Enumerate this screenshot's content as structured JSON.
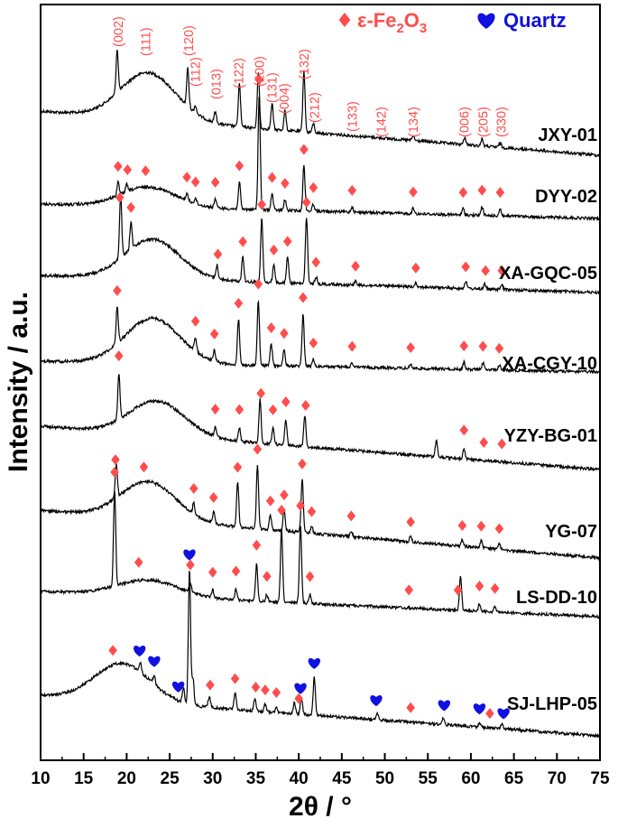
{
  "chart_data": {
    "type": "line",
    "title": "",
    "xlabel": "2θ / °",
    "ylabel": "Intensity / a.u.",
    "xlim": [
      10,
      75
    ],
    "x_ticks": [
      "10",
      "15",
      "20",
      "25",
      "30",
      "35",
      "40",
      "45",
      "50",
      "55",
      "60",
      "65",
      "70",
      "75"
    ],
    "y_ticks": [],
    "colors": {
      "fe2o3": "#ff4d4d",
      "quartz": "#1010e0",
      "trace": "#000000"
    },
    "legend": [
      {
        "name": "ε-Fe2O3",
        "marker": "diamond",
        "color": "#ff4d4d",
        "main": "ε-Fe",
        "sub": "2",
        "main2": "O",
        "sub2": "3"
      },
      {
        "name": "Quartz",
        "marker": "heart",
        "color": "#1010e0",
        "label": "Quartz"
      }
    ],
    "hkl": [
      {
        "label": "(002)",
        "x": 19.0
      },
      {
        "label": "(111)",
        "x": 22.2
      },
      {
        "label": "(120)",
        "x": 27.2
      },
      {
        "label": "(112)",
        "x": 28.0
      },
      {
        "label": "(013)",
        "x": 30.4
      },
      {
        "label": "(122)",
        "x": 33.0
      },
      {
        "label": "(200)",
        "x": 35.4
      },
      {
        "label": "(131)",
        "x": 36.9
      },
      {
        "label": "(004)",
        "x": 38.3
      },
      {
        "label": "(132)",
        "x": 40.6
      },
      {
        "label": "(212)",
        "x": 41.8
      },
      {
        "label": "(133)",
        "x": 46.2
      },
      {
        "label": "(142)",
        "x": 49.6
      },
      {
        "label": "(134)",
        "x": 53.3
      },
      {
        "label": "(006)",
        "x": 59.2
      },
      {
        "label": "(205)",
        "x": 61.4
      },
      {
        "label": "(330)",
        "x": 63.5
      }
    ],
    "series": [
      {
        "name": "JXY-01",
        "broad": {
          "center": 22.5,
          "height": 52,
          "width": 4.5
        },
        "peaks": [
          {
            "x": 18.9,
            "h": 48
          },
          {
            "x": 27.1,
            "h": 42
          },
          {
            "x": 28.0,
            "h": 8
          },
          {
            "x": 30.3,
            "h": 12
          },
          {
            "x": 33.1,
            "h": 48
          },
          {
            "x": 35.3,
            "h": 62
          },
          {
            "x": 36.9,
            "h": 28
          },
          {
            "x": 38.4,
            "h": 22
          },
          {
            "x": 40.6,
            "h": 68
          },
          {
            "x": 41.7,
            "h": 10
          },
          {
            "x": 53.3,
            "h": 5
          },
          {
            "x": 59.3,
            "h": 8
          },
          {
            "x": 61.3,
            "h": 8
          },
          {
            "x": 63.4,
            "h": 5
          }
        ],
        "fe2o3_markers": [],
        "quartz_markers": []
      },
      {
        "name": "DYY-02",
        "broad": {
          "center": 22.5,
          "height": 22,
          "width": 4.5
        },
        "peaks": [
          {
            "x": 19.0,
            "h": 14
          },
          {
            "x": 20.0,
            "h": 8
          },
          {
            "x": 27.0,
            "h": 8
          },
          {
            "x": 28.0,
            "h": 6
          },
          {
            "x": 30.3,
            "h": 10
          },
          {
            "x": 33.1,
            "h": 30
          },
          {
            "x": 35.4,
            "h": 126
          },
          {
            "x": 36.9,
            "h": 18
          },
          {
            "x": 38.4,
            "h": 12
          },
          {
            "x": 40.6,
            "h": 50
          },
          {
            "x": 41.7,
            "h": 8
          },
          {
            "x": 46.2,
            "h": 6
          },
          {
            "x": 53.3,
            "h": 6
          },
          {
            "x": 59.1,
            "h": 7
          },
          {
            "x": 61.3,
            "h": 10
          },
          {
            "x": 63.4,
            "h": 8
          }
        ],
        "fe2o3_markers": [
          19.0,
          20.1,
          22.2,
          27.0,
          28.0,
          30.3,
          33.1,
          35.4,
          36.9,
          38.4,
          40.6,
          41.7,
          46.2,
          53.3,
          59.1,
          61.3,
          63.4
        ],
        "quartz_markers": []
      },
      {
        "name": "XA-GQC-05",
        "broad": {
          "center": 23.0,
          "height": 44,
          "width": 4.5
        },
        "peaks": [
          {
            "x": 19.3,
            "h": 70
          },
          {
            "x": 20.5,
            "h": 30
          },
          {
            "x": 30.5,
            "h": 15
          },
          {
            "x": 33.5,
            "h": 28
          },
          {
            "x": 35.7,
            "h": 70
          },
          {
            "x": 37.1,
            "h": 20
          },
          {
            "x": 38.7,
            "h": 30
          },
          {
            "x": 40.9,
            "h": 74
          },
          {
            "x": 42.0,
            "h": 8
          },
          {
            "x": 46.6,
            "h": 5
          },
          {
            "x": 53.6,
            "h": 5
          },
          {
            "x": 59.4,
            "h": 8
          },
          {
            "x": 61.6,
            "h": 6
          },
          {
            "x": 63.6,
            "h": 5
          }
        ],
        "fe2o3_markers": [
          19.2,
          20.5,
          30.6,
          33.5,
          35.7,
          37.1,
          38.7,
          40.9,
          42.0,
          46.6,
          53.6,
          59.4,
          61.7,
          63.6
        ],
        "quartz_markers": []
      },
      {
        "name": "XA-CGY-10",
        "broad": {
          "center": 23.0,
          "height": 50,
          "width": 4.5
        },
        "peaks": [
          {
            "x": 18.9,
            "h": 40
          },
          {
            "x": 28.0,
            "h": 15
          },
          {
            "x": 30.2,
            "h": 12
          },
          {
            "x": 33.0,
            "h": 50
          },
          {
            "x": 35.3,
            "h": 72
          },
          {
            "x": 36.8,
            "h": 24
          },
          {
            "x": 38.3,
            "h": 18
          },
          {
            "x": 40.5,
            "h": 58
          },
          {
            "x": 41.7,
            "h": 8
          },
          {
            "x": 46.2,
            "h": 5
          },
          {
            "x": 53.0,
            "h": 5
          },
          {
            "x": 59.2,
            "h": 8
          },
          {
            "x": 61.4,
            "h": 8
          },
          {
            "x": 63.3,
            "h": 6
          }
        ],
        "fe2o3_markers": [
          18.9,
          28.0,
          30.2,
          33.0,
          35.3,
          36.8,
          38.3,
          40.5,
          41.7,
          46.2,
          53.0,
          59.2,
          61.4,
          63.3
        ],
        "quartz_markers": []
      },
      {
        "name": "YZY-BG-01",
        "broad": {
          "center": 23.5,
          "height": 38,
          "width": 4.5
        },
        "peaks": [
          {
            "x": 19.1,
            "h": 50
          },
          {
            "x": 30.3,
            "h": 10
          },
          {
            "x": 33.1,
            "h": 15
          },
          {
            "x": 35.5,
            "h": 48
          },
          {
            "x": 37.0,
            "h": 18
          },
          {
            "x": 38.5,
            "h": 28
          },
          {
            "x": 40.7,
            "h": 35
          },
          {
            "x": 56.0,
            "h": 18
          },
          {
            "x": 59.2,
            "h": 12
          }
        ],
        "fe2o3_markers": [
          19.1,
          30.3,
          33.1,
          35.6,
          37.0,
          38.5,
          40.8,
          59.2,
          61.5,
          63.6
        ],
        "quartz_markers": []
      },
      {
        "name": "YG-07",
        "broad": {
          "center": 22.5,
          "height": 42,
          "width": 4.5
        },
        "peaks": [
          {
            "x": 18.8,
            "h": 36
          },
          {
            "x": 27.8,
            "h": 12
          },
          {
            "x": 30.1,
            "h": 12
          },
          {
            "x": 32.9,
            "h": 50
          },
          {
            "x": 35.2,
            "h": 72
          },
          {
            "x": 36.7,
            "h": 16
          },
          {
            "x": 38.3,
            "h": 24
          },
          {
            "x": 40.4,
            "h": 60
          },
          {
            "x": 41.5,
            "h": 8
          },
          {
            "x": 46.1,
            "h": 7
          },
          {
            "x": 53.0,
            "h": 6
          },
          {
            "x": 59.0,
            "h": 7
          },
          {
            "x": 61.2,
            "h": 8
          },
          {
            "x": 63.3,
            "h": 7
          }
        ],
        "fe2o3_markers": [
          18.7,
          22.0,
          27.8,
          30.1,
          32.9,
          35.2,
          36.7,
          38.3,
          40.4,
          41.5,
          46.1,
          53.0,
          59.0,
          61.2,
          63.3
        ],
        "quartz_markers": []
      },
      {
        "name": "LS-DD-10",
        "broad": {
          "center": 22.5,
          "height": 18,
          "width": 5
        },
        "peaks": [
          {
            "x": 18.6,
            "h": 106
          },
          {
            "x": 27.4,
            "h": 10
          },
          {
            "x": 30.0,
            "h": 8
          },
          {
            "x": 32.7,
            "h": 12
          },
          {
            "x": 35.1,
            "h": 42
          },
          {
            "x": 36.3,
            "h": 8
          },
          {
            "x": 38.0,
            "h": 82
          },
          {
            "x": 40.2,
            "h": 88
          },
          {
            "x": 41.3,
            "h": 10
          },
          {
            "x": 58.8,
            "h": 38
          },
          {
            "x": 61.0,
            "h": 8
          },
          {
            "x": 62.8,
            "h": 6
          }
        ],
        "fe2o3_markers": [
          18.6,
          21.4,
          27.4,
          30.0,
          32.7,
          35.1,
          36.3,
          38.0,
          40.2,
          41.3,
          52.8,
          58.5,
          61.0,
          62.8
        ],
        "quartz_markers": []
      },
      {
        "name": "SJ-LHP-05",
        "broad": {
          "center": 19.5,
          "height": 42,
          "width": 4.5
        },
        "peaks": [
          {
            "x": 21.6,
            "h": 10
          },
          {
            "x": 23.2,
            "h": 10
          },
          {
            "x": 26.6,
            "h": 16
          },
          {
            "x": 27.3,
            "h": 150
          },
          {
            "x": 27.7,
            "h": 30
          },
          {
            "x": 29.6,
            "h": 12
          },
          {
            "x": 32.6,
            "h": 18
          },
          {
            "x": 34.9,
            "h": 14
          },
          {
            "x": 36.1,
            "h": 8
          },
          {
            "x": 37.4,
            "h": 6
          },
          {
            "x": 39.5,
            "h": 12
          },
          {
            "x": 40.3,
            "h": 18
          },
          {
            "x": 41.8,
            "h": 42
          },
          {
            "x": 49.1,
            "h": 8
          },
          {
            "x": 56.8,
            "h": 8
          },
          {
            "x": 61.0,
            "h": 5
          },
          {
            "x": 63.6,
            "h": 6
          }
        ],
        "fe2o3_markers": [
          18.4,
          29.7,
          32.6,
          35.0,
          36.1,
          37.4,
          40.0,
          53.0,
          62.2
        ],
        "quartz_markers": [
          21.5,
          23.2,
          26.0,
          27.3,
          40.2,
          41.8,
          49.0,
          56.9,
          61.0,
          63.8
        ]
      }
    ]
  }
}
